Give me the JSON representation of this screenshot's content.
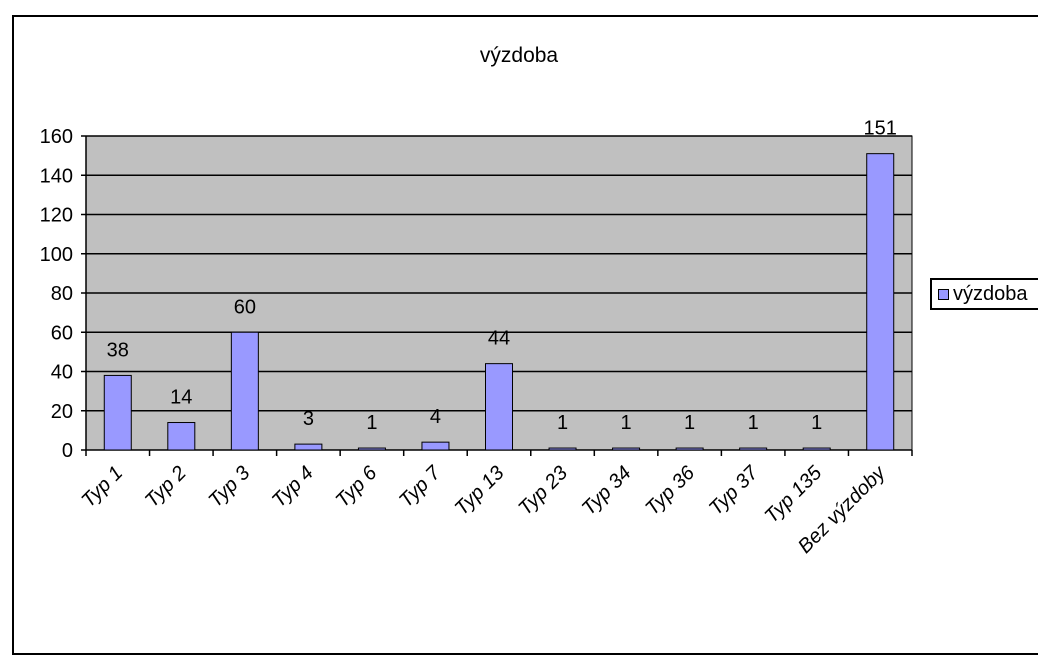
{
  "chart_data": {
    "type": "bar",
    "title": "výzdoba",
    "categories": [
      "Typ 1",
      "Typ 2",
      "Typ 3",
      "Typ 4",
      "Typ 6",
      "Typ 7",
      "Typ 13",
      "Typ 23",
      "Typ 34",
      "Typ 36",
      "Typ 37",
      "Typ 135",
      "Bez výzdoby"
    ],
    "series": [
      {
        "name": "výzdoba",
        "values": [
          38,
          14,
          60,
          3,
          1,
          4,
          44,
          1,
          1,
          1,
          1,
          1,
          151
        ]
      }
    ],
    "ylim": [
      0,
      160
    ],
    "yticks": [
      0,
      20,
      40,
      60,
      80,
      100,
      120,
      140,
      160
    ],
    "grid": true,
    "legend_position": "right",
    "colors": {
      "bar_fill": "#9999ff",
      "plot_background": "#c0c0c0",
      "axis": "#000000"
    }
  }
}
